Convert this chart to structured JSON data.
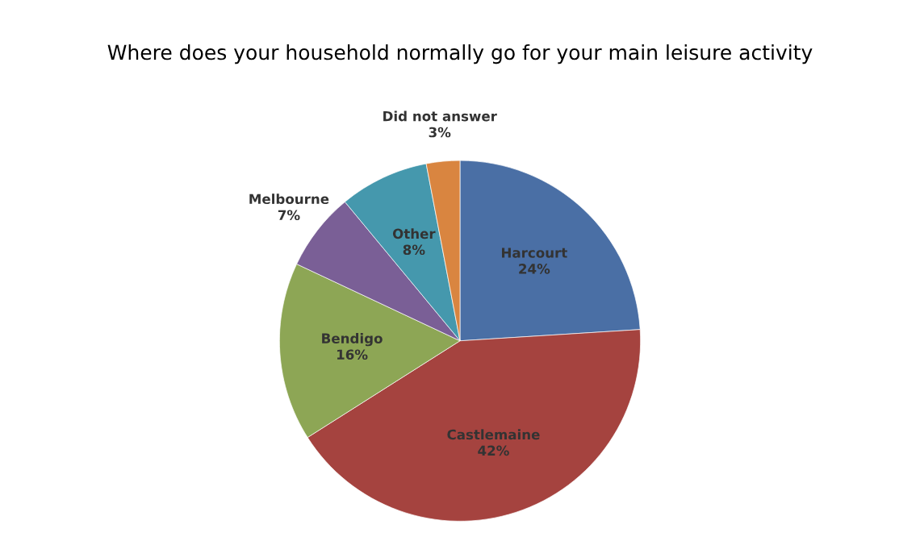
{
  "chart_data": {
    "type": "pie",
    "title": "Where does your household normally go for your main leisure activity",
    "categories": [
      "Harcourt",
      "Castlemaine",
      "Bendigo",
      "Melbourne",
      "Other",
      "Did not answer"
    ],
    "values": [
      24,
      42,
      16,
      7,
      8,
      3
    ],
    "value_labels": [
      "24%",
      "42%",
      "16%",
      "7%",
      "8%",
      "3%"
    ],
    "colors": [
      "#4a6fa5",
      "#a5433f",
      "#8da655",
      "#7a5f96",
      "#4598ad",
      "#d98540"
    ]
  }
}
